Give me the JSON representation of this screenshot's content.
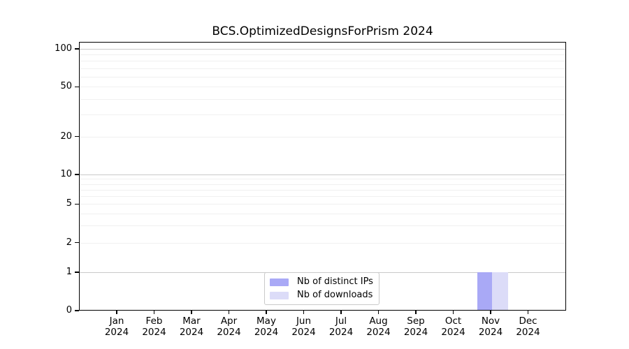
{
  "title": "BCS.OptimizedDesignsForPrism 2024",
  "chart_data": {
    "type": "bar",
    "title": "BCS.OptimizedDesignsForPrism 2024",
    "xlabel": "",
    "ylabel": "",
    "x_tick_labels": [
      {
        "month": "Jan",
        "year": "2024"
      },
      {
        "month": "Feb",
        "year": "2024"
      },
      {
        "month": "Mar",
        "year": "2024"
      },
      {
        "month": "Apr",
        "year": "2024"
      },
      {
        "month": "May",
        "year": "2024"
      },
      {
        "month": "Jun",
        "year": "2024"
      },
      {
        "month": "Jul",
        "year": "2024"
      },
      {
        "month": "Aug",
        "year": "2024"
      },
      {
        "month": "Sep",
        "year": "2024"
      },
      {
        "month": "Oct",
        "year": "2024"
      },
      {
        "month": "Nov",
        "year": "2024"
      },
      {
        "month": "Dec",
        "year": "2024"
      }
    ],
    "y_axis": {
      "scale": "log-above-1-linear-below-1",
      "tick_labels": [
        "100",
        "50",
        "20",
        "10",
        "5",
        "2",
        "1",
        "0"
      ],
      "tick_values": [
        100,
        50,
        20,
        10,
        5,
        2,
        1,
        0
      ],
      "major_gridline_values": [
        1,
        10,
        100
      ],
      "minor_gridline_values": [
        2,
        3,
        4,
        5,
        6,
        7,
        8,
        9,
        20,
        30,
        40,
        50,
        60,
        70,
        80,
        90
      ],
      "range": [
        0,
        110
      ],
      "grid": "on"
    },
    "series": [
      {
        "name": "Nb of distinct IPs",
        "color": "#a9a9f6",
        "values": [
          0,
          0,
          0,
          0,
          0,
          0,
          0,
          0,
          0,
          0,
          1,
          0
        ]
      },
      {
        "name": "Nb of downloads",
        "color": "#dcdcf8",
        "values": [
          0,
          0,
          0,
          0,
          0,
          0,
          0,
          0,
          0,
          0,
          1,
          0
        ]
      }
    ],
    "legend": {
      "position": "bottom-center-inside"
    }
  },
  "colors": {
    "major_grid": "#c9c9c9",
    "minor_grid": "#f0f0f0",
    "spine": "#000000",
    "legend_border": "#c9c9c9",
    "text": "#000000"
  }
}
